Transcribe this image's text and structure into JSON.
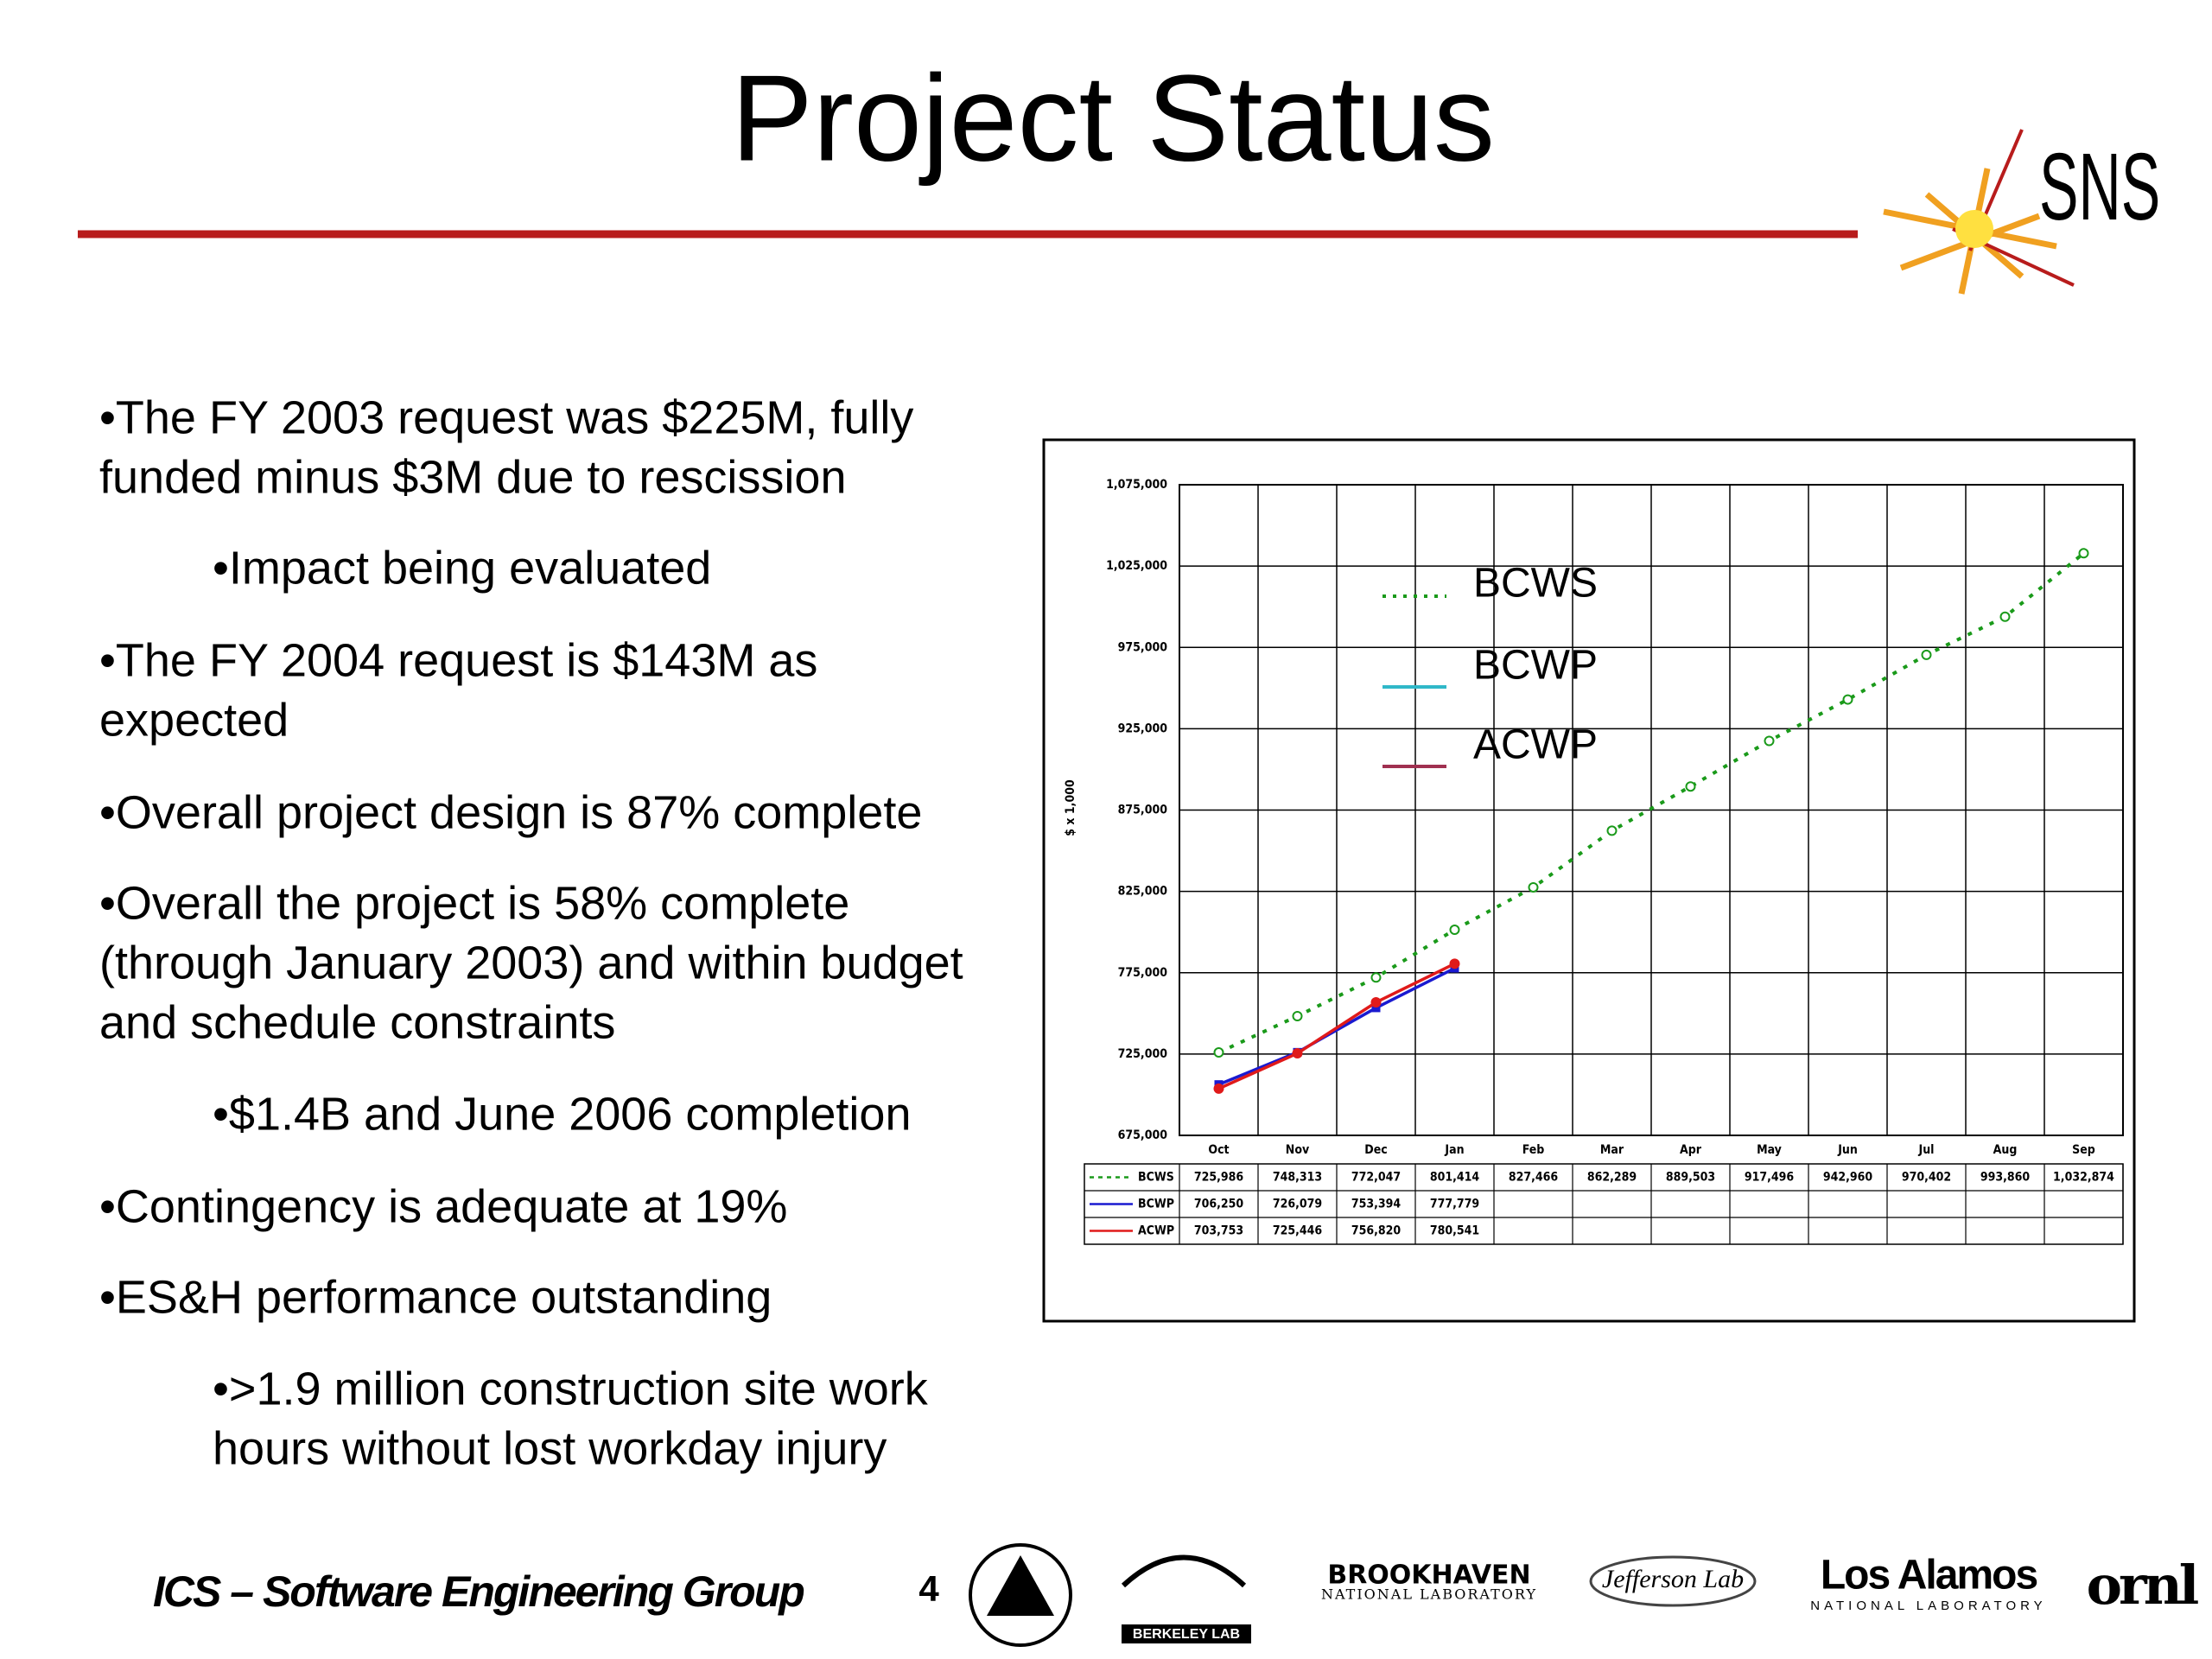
{
  "slide": {
    "title": "Project Status",
    "logo_text": "SNS",
    "bullets": [
      {
        "level": 1,
        "lines": [
          "•The FY 2003 request was $225M, fully",
          "funded minus $3M due to rescission"
        ]
      },
      {
        "level": 2,
        "lines": [
          "•Impact being evaluated"
        ]
      },
      {
        "level": 1,
        "lines": [
          "•The FY 2004 request is $143M as",
          "expected"
        ]
      },
      {
        "level": 1,
        "lines": [
          "•Overall project design is 87% complete"
        ]
      },
      {
        "level": 1,
        "lines": [
          "•Overall the project is 58% complete",
          "(through January 2003) and within budget",
          "and schedule constraints"
        ]
      },
      {
        "level": 2,
        "lines": [
          "•$1.4B and June 2006 completion"
        ]
      },
      {
        "level": 1,
        "lines": [
          "•Contingency is adequate at 19%"
        ]
      },
      {
        "level": 1,
        "lines": [
          "•ES&H performance outstanding"
        ]
      },
      {
        "level": 2,
        "lines": [
          "•>1.9 million construction site work",
          "hours without lost workday injury"
        ]
      }
    ],
    "footer": "ICS – Software Engineering Group",
    "page_number": "4",
    "logos": {
      "berkeley": "BERKELEY LAB",
      "brookhaven": [
        "BROOKHAVEN",
        "NATIONAL LABORATORY"
      ],
      "jefferson": "Jefferson Lab",
      "los_alamos": [
        "Los Alamos",
        "NATIONAL LABORATORY"
      ],
      "ornl": "ornl"
    }
  },
  "chart_data": {
    "type": "line",
    "y_label": "$ x 1,000",
    "categories": [
      "Oct",
      "Nov",
      "Dec",
      "Jan",
      "Feb",
      "Mar",
      "Apr",
      "May",
      "Jun",
      "Jul",
      "Aug",
      "Sep"
    ],
    "series": [
      {
        "name": "BCWS",
        "color": "#1a9a1a",
        "legend_color": "#1a9a1a",
        "dashed": true,
        "values": [
          725986,
          748313,
          772047,
          801414,
          827466,
          862289,
          889503,
          917496,
          942960,
          970402,
          993860,
          1032874
        ],
        "value_labels": [
          "725,986",
          "748,313",
          "772,047",
          "801,414",
          "827,466",
          "862,289",
          "889,503",
          "917,496",
          "942,960",
          "970,402",
          "993,860",
          "1,032,874"
        ]
      },
      {
        "name": "BCWP",
        "color": "#1a1ad0",
        "legend_color": "#30b8c8",
        "dashed": false,
        "values": [
          706250,
          726079,
          753394,
          777779,
          null,
          null,
          null,
          null,
          null,
          null,
          null,
          null
        ],
        "value_labels": [
          "706,250",
          "726,079",
          "753,394",
          "777,779",
          null,
          null,
          null,
          null,
          null,
          null,
          null,
          null
        ]
      },
      {
        "name": "ACWP",
        "color": "#e01a1a",
        "legend_color": "#a03050",
        "dashed": false,
        "values": [
          703753,
          725446,
          756820,
          780541,
          null,
          null,
          null,
          null,
          null,
          null,
          null,
          null
        ],
        "value_labels": [
          "703,753",
          "725,446",
          "756,820",
          "780,541",
          null,
          null,
          null,
          null,
          null,
          null,
          null,
          null
        ]
      }
    ],
    "ylim": [
      675000,
      1075000
    ],
    "yticks": [
      {
        "value": 675000,
        "label": "675,000"
      },
      {
        "value": 725000,
        "label": "725,000"
      },
      {
        "value": 775000,
        "label": "775,000"
      },
      {
        "value": 825000,
        "label": "825,000"
      },
      {
        "value": 875000,
        "label": "875,000"
      },
      {
        "value": 925000,
        "label": "925,000"
      },
      {
        "value": 975000,
        "label": "975,000"
      },
      {
        "value": 1025000,
        "label": "1,025,000"
      },
      {
        "value": 1075000,
        "label": "1,075,000"
      }
    ],
    "grid": true
  }
}
